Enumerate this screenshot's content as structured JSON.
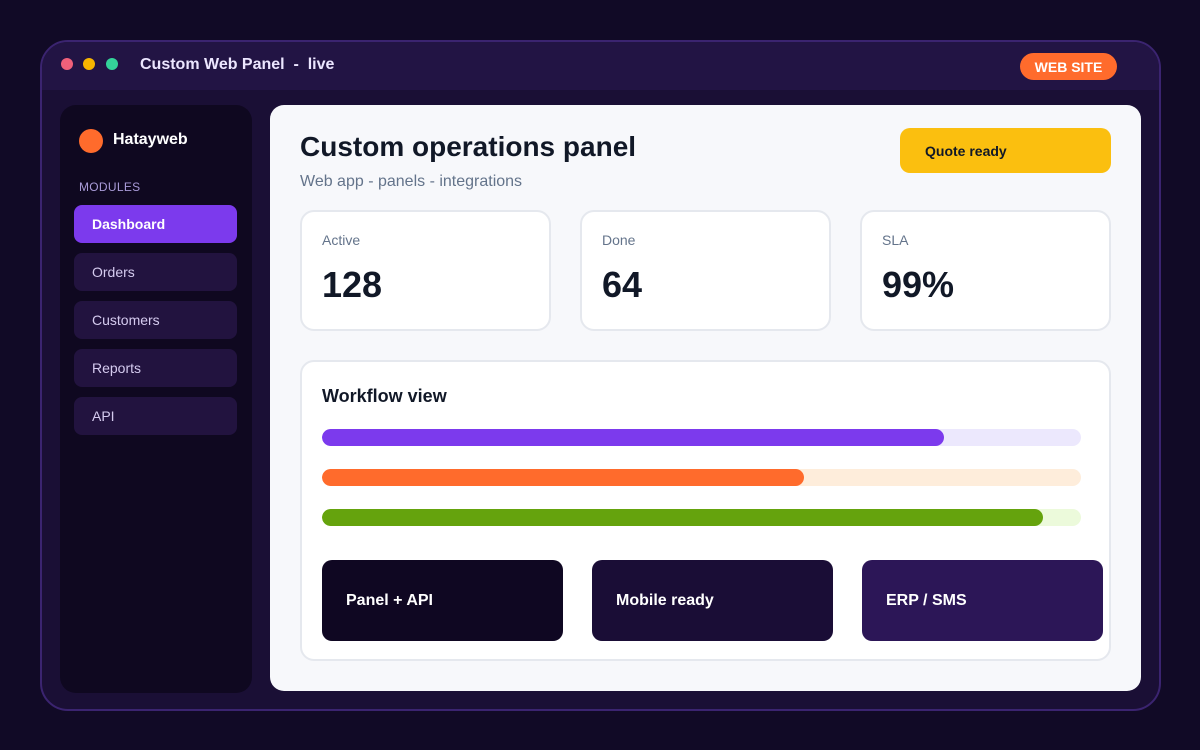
{
  "window": {
    "title": "Custom Web Panel  -  live",
    "website_button": "WEB SITE",
    "dots": [
      "#f0607a",
      "#f7b500",
      "#34d399"
    ]
  },
  "colors": {
    "brand_orange": "#ff6b2c",
    "accent_purple": "#7c3aed",
    "quote_yellow": "#fbbf0f"
  },
  "sidebar": {
    "brand": "Hatayweb",
    "section_label": "MODULES",
    "items": [
      {
        "label": "Dashboard",
        "active": true
      },
      {
        "label": "Orders",
        "active": false
      },
      {
        "label": "Customers",
        "active": false
      },
      {
        "label": "Reports",
        "active": false
      },
      {
        "label": "API",
        "active": false
      }
    ]
  },
  "main": {
    "title": "Custom operations panel",
    "subtitle": "Web app - panels - integrations",
    "quote_button": "Quote ready",
    "stats": [
      {
        "label": "Active",
        "value": "128"
      },
      {
        "label": "Done",
        "value": "64"
      },
      {
        "label": "SLA",
        "value": "99%"
      }
    ],
    "workflow": {
      "title": "Workflow view",
      "bars": [
        {
          "progress": 0.82,
          "fill": "#7c3aed",
          "track": "#ece8fd"
        },
        {
          "progress": 0.635,
          "fill": "#ff6b2c",
          "track": "#feeddb"
        },
        {
          "progress": 0.95,
          "fill": "#65a30d",
          "track": "#ecfadb"
        }
      ],
      "features": [
        {
          "label": "Panel + API",
          "bg": "#0f0722"
        },
        {
          "label": "Mobile ready",
          "bg": "#1a0d36"
        },
        {
          "label": "ERP / SMS",
          "bg": "#2c1657"
        }
      ]
    }
  }
}
